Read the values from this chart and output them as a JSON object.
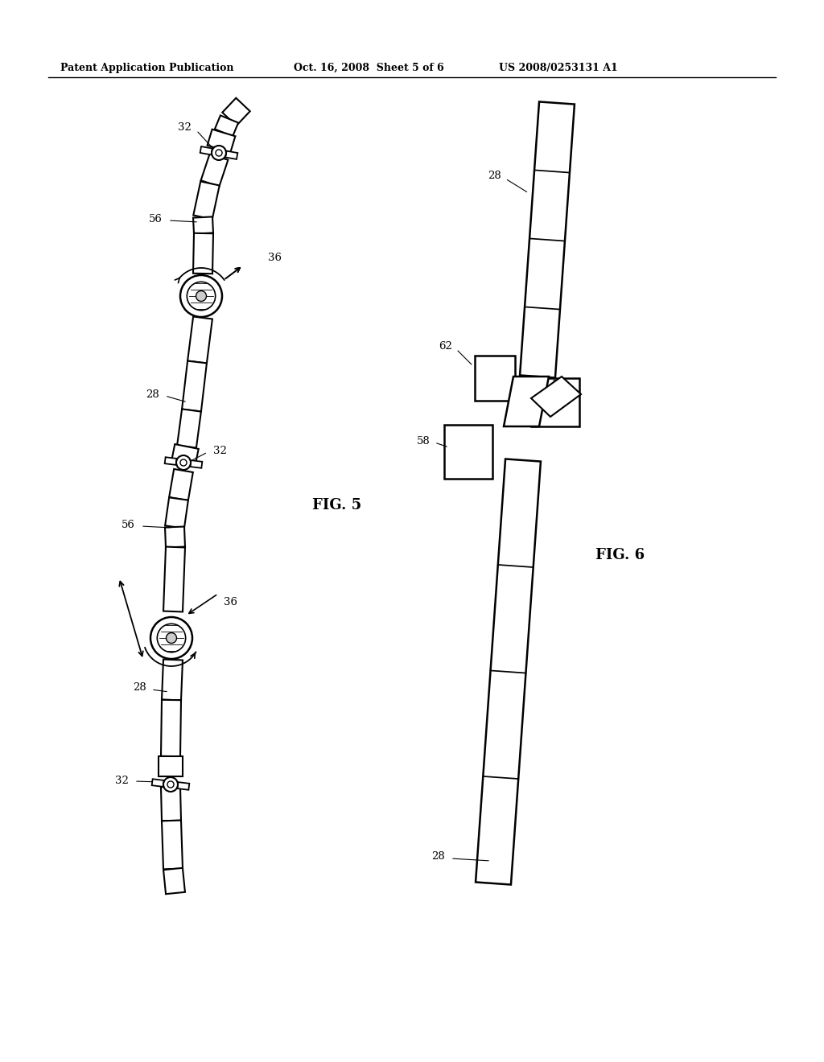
{
  "background_color": "#ffffff",
  "header_left": "Patent Application Publication",
  "header_center": "Oct. 16, 2008  Sheet 5 of 6",
  "header_right": "US 2008/0253131 A1",
  "fig5_label": "FIG. 5",
  "fig6_label": "FIG. 6"
}
